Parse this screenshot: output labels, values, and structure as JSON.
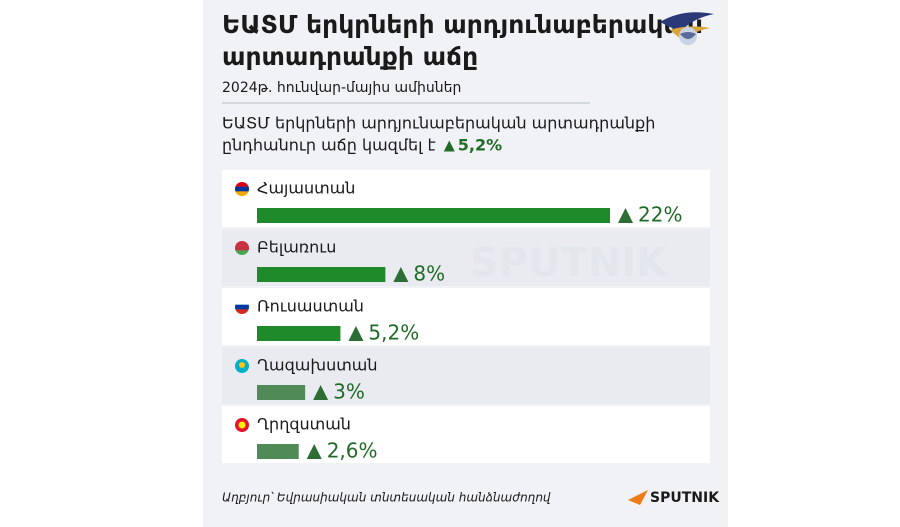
{
  "chart_data": {
    "type": "bar",
    "orientation": "horizontal",
    "title": [
      "ԵԱՏՄ երկրների արդյունաբերական",
      "արտադրանքի աճը"
    ],
    "subtitle": "2024թ. հունվար-մայիս ամիսներ",
    "note": [
      "ԵԱՏՄ երկրների արդյունաբերական արտադրանքի",
      "ընդհանուր աճը կազմել է"
    ],
    "note_value": "5,2%",
    "categories": [
      "Հայաստան",
      "Բելառուս",
      "Ռուսաստան",
      "Ղազախստան",
      "Ղրղզստան"
    ],
    "values": [
      22,
      8,
      5.2,
      3,
      2.6
    ],
    "value_labels": [
      "22%",
      "8%",
      "5,2%",
      "3%",
      "2,6%"
    ],
    "colors": [
      "#1f8a2a",
      "#1f8a2a",
      "#1f8a2a",
      "#4f8a57",
      "#4f8a57"
    ],
    "xlim": [
      0,
      22
    ],
    "source": "Աղբյուր՝ Եվրասիական տնտեսական հանձնաժողով",
    "logo": "SPUTNIK"
  }
}
